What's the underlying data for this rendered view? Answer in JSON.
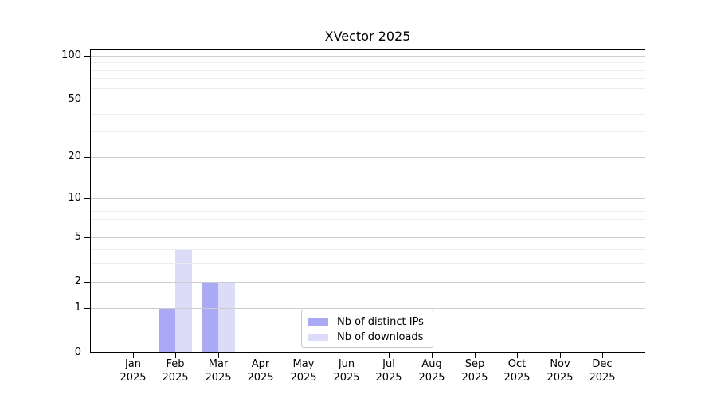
{
  "title": "XVector 2025",
  "chart_data": {
    "type": "bar",
    "title": "XVector 2025",
    "xlabel": "",
    "ylabel": "",
    "y_scale": "log1p",
    "grid": "horizontal",
    "ylim": [
      0,
      111
    ],
    "yticks": [
      0,
      1,
      2,
      5,
      10,
      20,
      50,
      100
    ],
    "minor_gridlines": [
      3,
      4,
      6,
      7,
      8,
      9,
      30,
      40,
      60,
      70,
      80,
      90
    ],
    "categories": [
      {
        "month": "Jan",
        "year": "2025"
      },
      {
        "month": "Feb",
        "year": "2025"
      },
      {
        "month": "Mar",
        "year": "2025"
      },
      {
        "month": "Apr",
        "year": "2025"
      },
      {
        "month": "May",
        "year": "2025"
      },
      {
        "month": "Jun",
        "year": "2025"
      },
      {
        "month": "Jul",
        "year": "2025"
      },
      {
        "month": "Aug",
        "year": "2025"
      },
      {
        "month": "Sep",
        "year": "2025"
      },
      {
        "month": "Oct",
        "year": "2025"
      },
      {
        "month": "Nov",
        "year": "2025"
      },
      {
        "month": "Dec",
        "year": "2025"
      }
    ],
    "series": [
      {
        "name": "Nb of distinct IPs",
        "color": "#a9a9f5",
        "values": [
          0,
          1,
          2,
          0,
          0,
          0,
          0,
          0,
          0,
          0,
          0,
          0
        ]
      },
      {
        "name": "Nb of downloads",
        "color": "#dcdcf8",
        "values": [
          0,
          4,
          2,
          0,
          0,
          0,
          0,
          0,
          0,
          0,
          0,
          0
        ]
      }
    ],
    "legend_position": "lower center"
  }
}
